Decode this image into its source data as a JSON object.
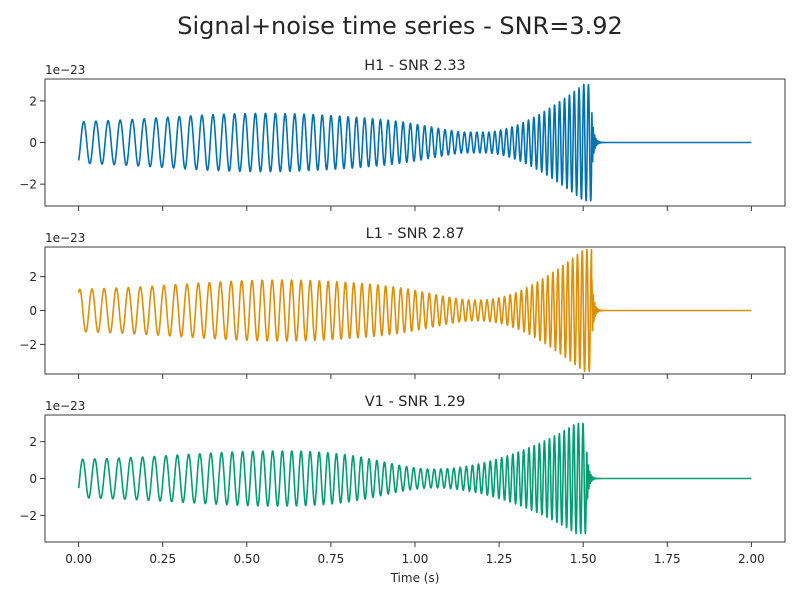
{
  "figure": {
    "suptitle": "Signal+noise time series - SNR=3.92",
    "xlabel": "Time (s)",
    "offset_label": "1e−23"
  },
  "chart_data": [
    {
      "type": "line",
      "title": "H1 - SNR 2.33",
      "color": "#0072b2",
      "xlabel": "Time (s)",
      "ylabel": "",
      "xlim": [
        -0.1,
        2.1
      ],
      "ylim": [
        -3.05,
        3.05
      ],
      "y_scale_label": "1e−23",
      "x_ticks": [
        "0.00",
        "0.25",
        "0.50",
        "0.75",
        "1.00",
        "1.25",
        "1.50",
        "1.75",
        "2.00"
      ],
      "x_ticks_visible": false,
      "y_ticks": [
        "−2",
        "0",
        "2"
      ],
      "y_tick_values": [
        -2,
        0,
        2
      ],
      "waveform": {
        "start_s": 0.0,
        "end_s": 2.0,
        "merger_s": 1.525,
        "start_value": -0.8,
        "max_amplitude": 2.8,
        "min_amplitude": 0.5,
        "envelope_peak_s": 0.55,
        "envelope_trough_s": 1.2,
        "approx_cycles": 42,
        "post_merger_value": 0.0
      },
      "grid": false,
      "legend": "none"
    },
    {
      "type": "line",
      "title": "L1 - SNR 2.87",
      "color": "#de8f05",
      "xlabel": "Time (s)",
      "ylabel": "",
      "xlim": [
        -0.1,
        2.1
      ],
      "ylim": [
        -3.75,
        3.75
      ],
      "y_scale_label": "1e−23",
      "x_ticks": [
        "0.00",
        "0.25",
        "0.50",
        "0.75",
        "1.00",
        "1.25",
        "1.50",
        "1.75",
        "2.00"
      ],
      "x_ticks_visible": false,
      "y_ticks": [
        "−2",
        "0",
        "2"
      ],
      "y_tick_values": [
        -2,
        0,
        2
      ],
      "waveform": {
        "start_s": 0.0,
        "end_s": 2.0,
        "merger_s": 1.525,
        "start_value": 1.0,
        "max_amplitude": 3.6,
        "min_amplitude": 0.5,
        "envelope_peak_s": 0.6,
        "envelope_trough_s": 1.2,
        "approx_cycles": 42,
        "post_merger_value": 0.0
      },
      "grid": false,
      "legend": "none"
    },
    {
      "type": "line",
      "title": "V1 - SNR 1.29",
      "color": "#029e73",
      "xlabel": "Time (s)",
      "ylabel": "",
      "xlim": [
        -0.1,
        2.1
      ],
      "ylim": [
        -3.45,
        3.45
      ],
      "y_scale_label": "1e−23",
      "x_ticks": [
        "0.00",
        "0.25",
        "0.50",
        "0.75",
        "1.00",
        "1.25",
        "1.50",
        "1.75",
        "2.00"
      ],
      "x_ticks_visible": true,
      "y_ticks": [
        "−2",
        "0",
        "2"
      ],
      "y_tick_values": [
        -2,
        0,
        2
      ],
      "waveform": {
        "start_s": 0.0,
        "end_s": 2.0,
        "merger_s": 1.51,
        "start_value": -0.5,
        "max_amplitude": 3.0,
        "min_amplitude": 0.4,
        "envelope_peak_s": 0.6,
        "envelope_trough_s": 1.05,
        "approx_cycles": 42,
        "post_merger_value": 0.0
      },
      "grid": false,
      "legend": "none"
    }
  ]
}
